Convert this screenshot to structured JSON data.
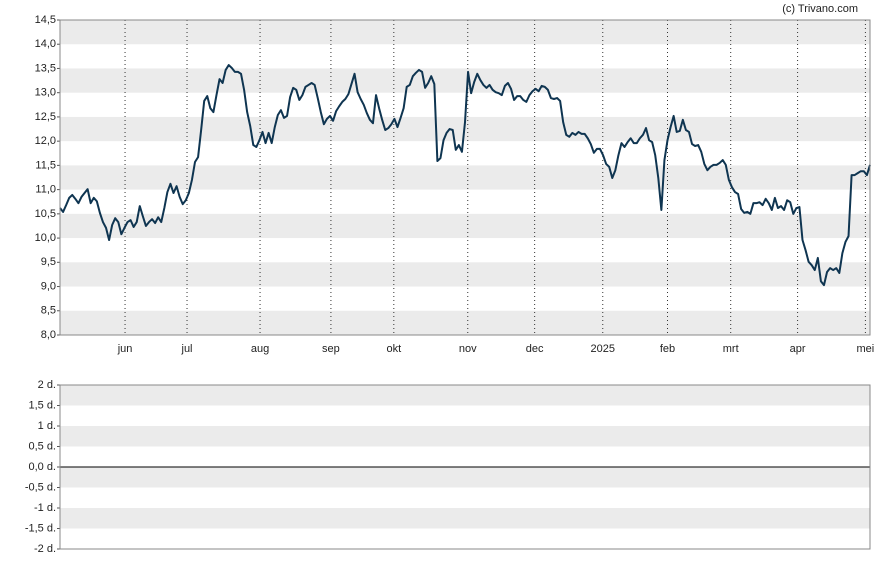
{
  "chart_data": [
    {
      "type": "line",
      "credit": "(c) Trivano.com",
      "color": "#0f3551",
      "xlim": [
        0,
        264
      ],
      "xticks": [
        {
          "value": 21.2,
          "label": "jun"
        },
        {
          "value": 41.4,
          "label": "jul"
        },
        {
          "value": 65.2,
          "label": "aug"
        },
        {
          "value": 88.3,
          "label": "sep"
        },
        {
          "value": 108.8,
          "label": "okt"
        },
        {
          "value": 132.9,
          "label": "nov"
        },
        {
          "value": 154.7,
          "label": "dec"
        },
        {
          "value": 176.9,
          "label": "2025"
        },
        {
          "value": 198.0,
          "label": "feb"
        },
        {
          "value": 218.6,
          "label": "mrt"
        },
        {
          "value": 240.4,
          "label": "apr"
        },
        {
          "value": 262.5,
          "label": "mei"
        }
      ],
      "ylim": [
        8,
        14.5
      ],
      "yticks": [
        {
          "value": 8,
          "label": "8,0"
        },
        {
          "value": 8.5,
          "label": "8,5"
        },
        {
          "value": 9,
          "label": "9,0"
        },
        {
          "value": 9.5,
          "label": "9,5"
        },
        {
          "value": 10,
          "label": "10,0"
        },
        {
          "value": 10.5,
          "label": "10,5"
        },
        {
          "value": 11,
          "label": "11,0"
        },
        {
          "value": 11.5,
          "label": "11,5"
        },
        {
          "value": 12,
          "label": "12,0"
        },
        {
          "value": 12.5,
          "label": "12,5"
        },
        {
          "value": 13,
          "label": "13,0"
        },
        {
          "value": 13.5,
          "label": "13,5"
        },
        {
          "value": 14,
          "label": "14,0"
        },
        {
          "value": 14.5,
          "label": "14,5"
        }
      ],
      "values": [
        10.62,
        10.54,
        10.68,
        10.83,
        10.89,
        10.81,
        10.72,
        10.85,
        10.93,
        11.01,
        10.72,
        10.83,
        10.76,
        10.52,
        10.33,
        10.21,
        9.96,
        10.27,
        10.41,
        10.33,
        10.08,
        10.21,
        10.33,
        10.37,
        10.23,
        10.33,
        10.66,
        10.45,
        10.25,
        10.33,
        10.39,
        10.31,
        10.43,
        10.33,
        10.62,
        10.95,
        11.12,
        10.93,
        11.07,
        10.85,
        10.7,
        10.78,
        10.93,
        11.2,
        11.57,
        11.67,
        12.23,
        12.83,
        12.93,
        12.68,
        12.6,
        12.95,
        13.28,
        13.2,
        13.47,
        13.57,
        13.51,
        13.43,
        13.43,
        13.39,
        13.06,
        12.6,
        12.31,
        11.92,
        11.88,
        12.02,
        12.19,
        11.96,
        12.17,
        11.96,
        12.29,
        12.54,
        12.64,
        12.48,
        12.52,
        12.91,
        13.1,
        13.06,
        12.85,
        12.95,
        13.12,
        13.16,
        13.2,
        13.16,
        12.89,
        12.6,
        12.35,
        12.46,
        12.52,
        12.42,
        12.62,
        12.72,
        12.81,
        12.87,
        12.97,
        13.18,
        13.39,
        13.01,
        12.87,
        12.75,
        12.58,
        12.44,
        12.37,
        12.95,
        12.68,
        12.44,
        12.23,
        12.27,
        12.35,
        12.46,
        12.29,
        12.48,
        12.68,
        13.12,
        13.16,
        13.34,
        13.41,
        13.47,
        13.43,
        13.1,
        13.2,
        13.34,
        13.18,
        11.59,
        11.65,
        12.02,
        12.17,
        12.25,
        12.23,
        11.82,
        11.92,
        11.78,
        12.39,
        13.43,
        12.99,
        13.22,
        13.39,
        13.26,
        13.16,
        13.1,
        13.16,
        13.06,
        13.01,
        12.99,
        12.95,
        13.14,
        13.2,
        13.08,
        12.85,
        12.93,
        12.93,
        12.85,
        12.81,
        12.95,
        13.03,
        13.08,
        13.03,
        13.14,
        13.12,
        13.06,
        12.89,
        12.87,
        12.89,
        12.83,
        12.39,
        12.13,
        12.09,
        12.17,
        12.13,
        12.19,
        12.15,
        12.15,
        12.06,
        11.94,
        11.76,
        11.84,
        11.84,
        11.71,
        11.53,
        11.47,
        11.24,
        11.4,
        11.71,
        11.96,
        11.88,
        11.98,
        12.06,
        11.96,
        11.96,
        12.06,
        12.13,
        12.27,
        12.02,
        11.98,
        11.71,
        11.24,
        10.58,
        11.61,
        12.02,
        12.29,
        12.52,
        12.19,
        12.21,
        12.44,
        12.23,
        12.19,
        11.94,
        11.9,
        11.92,
        11.78,
        11.53,
        11.4,
        11.47,
        11.51,
        11.51,
        11.55,
        11.61,
        11.51,
        11.2,
        11.05,
        10.95,
        10.91,
        10.6,
        10.52,
        10.54,
        10.5,
        10.72,
        10.72,
        10.74,
        10.68,
        10.81,
        10.72,
        10.58,
        10.83,
        10.62,
        10.66,
        10.58,
        10.78,
        10.74,
        10.5,
        10.62,
        10.64,
        9.96,
        9.75,
        9.51,
        9.44,
        9.34,
        9.59,
        9.11,
        9.03,
        9.3,
        9.38,
        9.34,
        9.38,
        9.28,
        9.69,
        9.92,
        10.04,
        11.3,
        11.3,
        11.34,
        11.38,
        11.38,
        11.3,
        11.51
      ]
    },
    {
      "type": "bar",
      "categories": [],
      "values": [],
      "ylim": [
        -2,
        2
      ],
      "yticks": [
        {
          "value": -2,
          "label": "-2 d."
        },
        {
          "value": -1.5,
          "label": "-1,5 d."
        },
        {
          "value": -1,
          "label": "-1 d."
        },
        {
          "value": -0.5,
          "label": "-0,5 d."
        },
        {
          "value": 0,
          "label": "0,0 d."
        },
        {
          "value": 0.5,
          "label": "0,5 d."
        },
        {
          "value": 1,
          "label": "1 d."
        },
        {
          "value": 1.5,
          "label": "1,5 d."
        },
        {
          "value": 2,
          "label": "2 d."
        }
      ]
    }
  ]
}
